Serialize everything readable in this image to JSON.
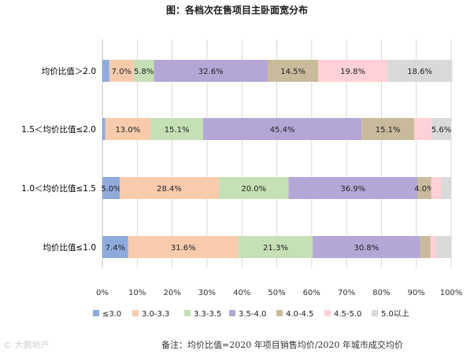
{
  "chart_data": {
    "type": "bar",
    "orientation": "horizontal",
    "stacked": true,
    "title": "图：各档次在售项目主卧面宽分布",
    "categories": [
      "均价比值＞2.0",
      "1.5＜均价比值≤2.0",
      "1.0＜均价比值≤1.5",
      "均价比值≤1.0"
    ],
    "xlim": [
      0,
      100
    ],
    "x_ticks": [
      "0%",
      "10%",
      "20%",
      "30%",
      "40%",
      "50%",
      "60%",
      "70%",
      "80%",
      "90%",
      "100%"
    ],
    "grid": "vertical",
    "legend_position": "bottom",
    "series": [
      {
        "name": "≤3.0",
        "color": "#8EAADB",
        "values": [
          2.0,
          0.8,
          5.0,
          7.4
        ],
        "labels": [
          "",
          "",
          "5.0%",
          "7.4%"
        ]
      },
      {
        "name": "3.0-3.3",
        "color": "#F8CBAD",
        "values": [
          7.0,
          13.0,
          28.4,
          31.6
        ],
        "labels": [
          "7.0%",
          "13.0%",
          "28.4%",
          "31.6%"
        ]
      },
      {
        "name": "3.3-3.5",
        "color": "#C5E0B4",
        "values": [
          5.8,
          15.1,
          20.0,
          21.3
        ],
        "labels": [
          "5.8%",
          "15.1%",
          "20.0%",
          "21.3%"
        ]
      },
      {
        "name": "3.5-4.0",
        "color": "#B4A7D6",
        "values": [
          32.6,
          45.4,
          36.9,
          30.8
        ],
        "labels": [
          "32.6%",
          "45.4%",
          "36.9%",
          "30.8%"
        ]
      },
      {
        "name": "4.0-4.5",
        "color": "#C9BA9B",
        "values": [
          14.5,
          15.1,
          4.0,
          3.0
        ],
        "labels": [
          "14.5%",
          "15.1%",
          "4.0%",
          ""
        ]
      },
      {
        "name": "4.5-5.0",
        "color": "#FFD1D6",
        "values": [
          19.8,
          5.0,
          3.0,
          1.5
        ],
        "labels": [
          "19.8%",
          "",
          "",
          ""
        ]
      },
      {
        "name": "5.0以上",
        "color": "#D9D9D9",
        "values": [
          18.6,
          5.6,
          2.7,
          4.4
        ],
        "labels": [
          "18.6%",
          "5.6%",
          "",
          ""
        ]
      }
    ]
  },
  "watermark": "© 大鹏地产",
  "footnote": "备注：均价比值=2020 年项目销售均价/2020 年城市成交均价"
}
